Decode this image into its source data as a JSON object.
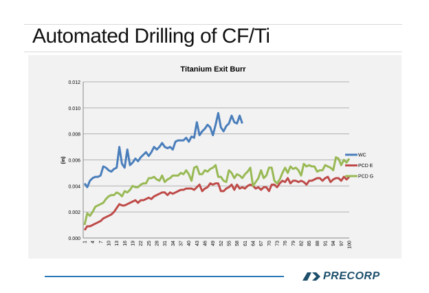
{
  "slide": {
    "title": "Automated Drilling of CF/Ti"
  },
  "logo": {
    "text": "PRECORP",
    "color": "#1d4f6b"
  },
  "chart_data": {
    "type": "line",
    "title": "Titanium Exit Burr",
    "xlabel": "",
    "ylabel": "(in)",
    "ylim": [
      0,
      0.012
    ],
    "yticks": [
      "0.000",
      "0.002",
      "0.004",
      "0.006",
      "0.008",
      "0.010",
      "0.012"
    ],
    "xticks": [
      1,
      4,
      7,
      10,
      13,
      16,
      19,
      22,
      25,
      28,
      31,
      34,
      37,
      40,
      43,
      46,
      49,
      52,
      55,
      58,
      61,
      64,
      67,
      70,
      73,
      76,
      79,
      82,
      85,
      88,
      91,
      94,
      97,
      100
    ],
    "xlim": [
      1,
      100
    ],
    "grid": "horizontal",
    "legend": "right",
    "series": [
      {
        "name": "WC",
        "color": "#4a7ebb",
        "values": [
          0.0042,
          0.0039,
          0.0044,
          0.0046,
          0.0047,
          0.0047,
          0.0048,
          0.0055,
          0.0054,
          0.0052,
          0.0051,
          0.0053,
          0.0054,
          0.007,
          0.0057,
          0.0054,
          0.0068,
          0.0056,
          0.0058,
          0.0061,
          0.0059,
          0.0062,
          0.0064,
          0.0066,
          0.0063,
          0.0066,
          0.007,
          0.0068,
          0.007,
          0.0073,
          0.007,
          0.0069,
          0.007,
          0.0068,
          0.0074,
          0.0075,
          0.0075,
          0.0075,
          0.0077,
          0.0074,
          0.0078,
          0.0077,
          0.0089,
          0.0079,
          0.0082,
          0.0084,
          0.0087,
          0.0085,
          0.0079,
          0.0087,
          0.0096,
          0.0085,
          0.0082,
          0.0086,
          0.0088,
          0.0094,
          0.0089,
          0.0088,
          0.0094,
          0.0088
        ]
      },
      {
        "name": "PCD E",
        "color": "#be4b48",
        "values": [
          0.0006,
          0.0009,
          0.0009,
          0.001,
          0.0011,
          0.0012,
          0.0013,
          0.0015,
          0.0016,
          0.0017,
          0.0018,
          0.002,
          0.0023,
          0.0026,
          0.0025,
          0.0025,
          0.0026,
          0.0027,
          0.0028,
          0.0029,
          0.0027,
          0.0029,
          0.0029,
          0.003,
          0.0031,
          0.003,
          0.0032,
          0.0033,
          0.0034,
          0.0035,
          0.0035,
          0.0033,
          0.0035,
          0.0034,
          0.0035,
          0.0036,
          0.0037,
          0.0037,
          0.0038,
          0.0038,
          0.0038,
          0.0037,
          0.0039,
          0.0041,
          0.0036,
          0.0038,
          0.0039,
          0.0042,
          0.0041,
          0.0042,
          0.0042,
          0.0036,
          0.0036,
          0.0038,
          0.0039,
          0.0041,
          0.0037,
          0.0041,
          0.0038,
          0.0039,
          0.0038,
          0.004,
          0.0041,
          0.004,
          0.0038,
          0.0039,
          0.0037,
          0.0039,
          0.0039,
          0.0036,
          0.0041,
          0.0041,
          0.0039,
          0.0042,
          0.0044,
          0.0043,
          0.0046,
          0.0042,
          0.0044,
          0.0044,
          0.0043,
          0.0044,
          0.0043,
          0.0041,
          0.0044,
          0.0044,
          0.0045,
          0.0046,
          0.0046,
          0.0044,
          0.0046,
          0.0047,
          0.0043,
          0.0045,
          0.0046,
          0.0046,
          0.0044,
          0.0047,
          0.0045,
          0.0047
        ]
      },
      {
        "name": "PCD G",
        "color": "#98b954",
        "values": [
          0.001,
          0.0019,
          0.0017,
          0.002,
          0.0024,
          0.0025,
          0.0026,
          0.0027,
          0.003,
          0.0032,
          0.0033,
          0.0033,
          0.0035,
          0.0034,
          0.0032,
          0.0036,
          0.0035,
          0.0037,
          0.004,
          0.0039,
          0.0039,
          0.0041,
          0.0042,
          0.0042,
          0.0046,
          0.0046,
          0.0047,
          0.0045,
          0.0044,
          0.0048,
          0.0043,
          0.0045,
          0.0046,
          0.0048,
          0.0048,
          0.0048,
          0.005,
          0.0049,
          0.0052,
          0.0049,
          0.0044,
          0.0054,
          0.0055,
          0.0049,
          0.0049,
          0.0052,
          0.0051,
          0.0053,
          0.0054,
          0.0056,
          0.0047,
          0.0047,
          0.0044,
          0.0043,
          0.0052,
          0.005,
          0.0046,
          0.0049,
          0.0048,
          0.0046,
          0.0049,
          0.0051,
          0.0054,
          0.004,
          0.0043,
          0.0046,
          0.0052,
          0.0046,
          0.0048,
          0.0054,
          0.0054,
          0.0044,
          0.0042,
          0.0045,
          0.005,
          0.0054,
          0.005,
          0.0055,
          0.0053,
          0.0054,
          0.0052,
          0.0048,
          0.0057,
          0.0055,
          0.0056,
          0.0055,
          0.0055,
          0.0051,
          0.0052,
          0.0052,
          0.0056,
          0.0055,
          0.0054,
          0.0052,
          0.0062,
          0.0061,
          0.0056,
          0.006,
          0.0058,
          0.0061
        ]
      }
    ]
  }
}
